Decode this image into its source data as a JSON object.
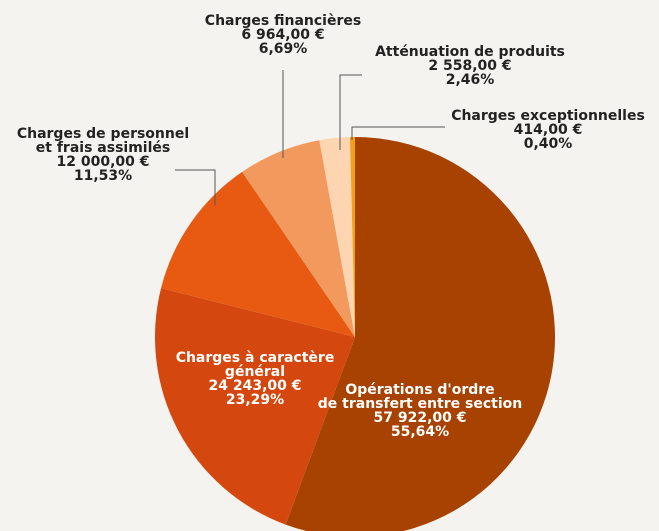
{
  "chart_data": {
    "type": "pie",
    "categories": [
      [
        "Opérations d'ordre",
        "de transfert entre section"
      ],
      [
        "Charges à caractère",
        "général"
      ],
      [
        "Charges de personnel",
        "et frais assimilés"
      ],
      [
        "Charges financières"
      ],
      [
        "Atténuation de produits"
      ],
      [
        "Charges exceptionnelles"
      ]
    ],
    "values": [
      57922,
      24243,
      12000,
      6964,
      2558,
      414
    ],
    "value_labels": [
      "57 922,00 €",
      "24 243,00 €",
      "12 000,00 €",
      "6 964,00 €",
      "2 558,00 €",
      "414,00 €"
    ],
    "percentages": [
      55.64,
      23.29,
      11.53,
      6.69,
      2.46,
      0.4
    ],
    "percentage_labels": [
      "55,64%",
      "23,29%",
      "11,53%",
      "6,69%",
      "2,46%",
      "0,40%"
    ],
    "colors": [
      "#a84200",
      "#d4480f",
      "#e85a12",
      "#f29a5e",
      "#fdd5b0",
      "#f0a01a"
    ]
  }
}
